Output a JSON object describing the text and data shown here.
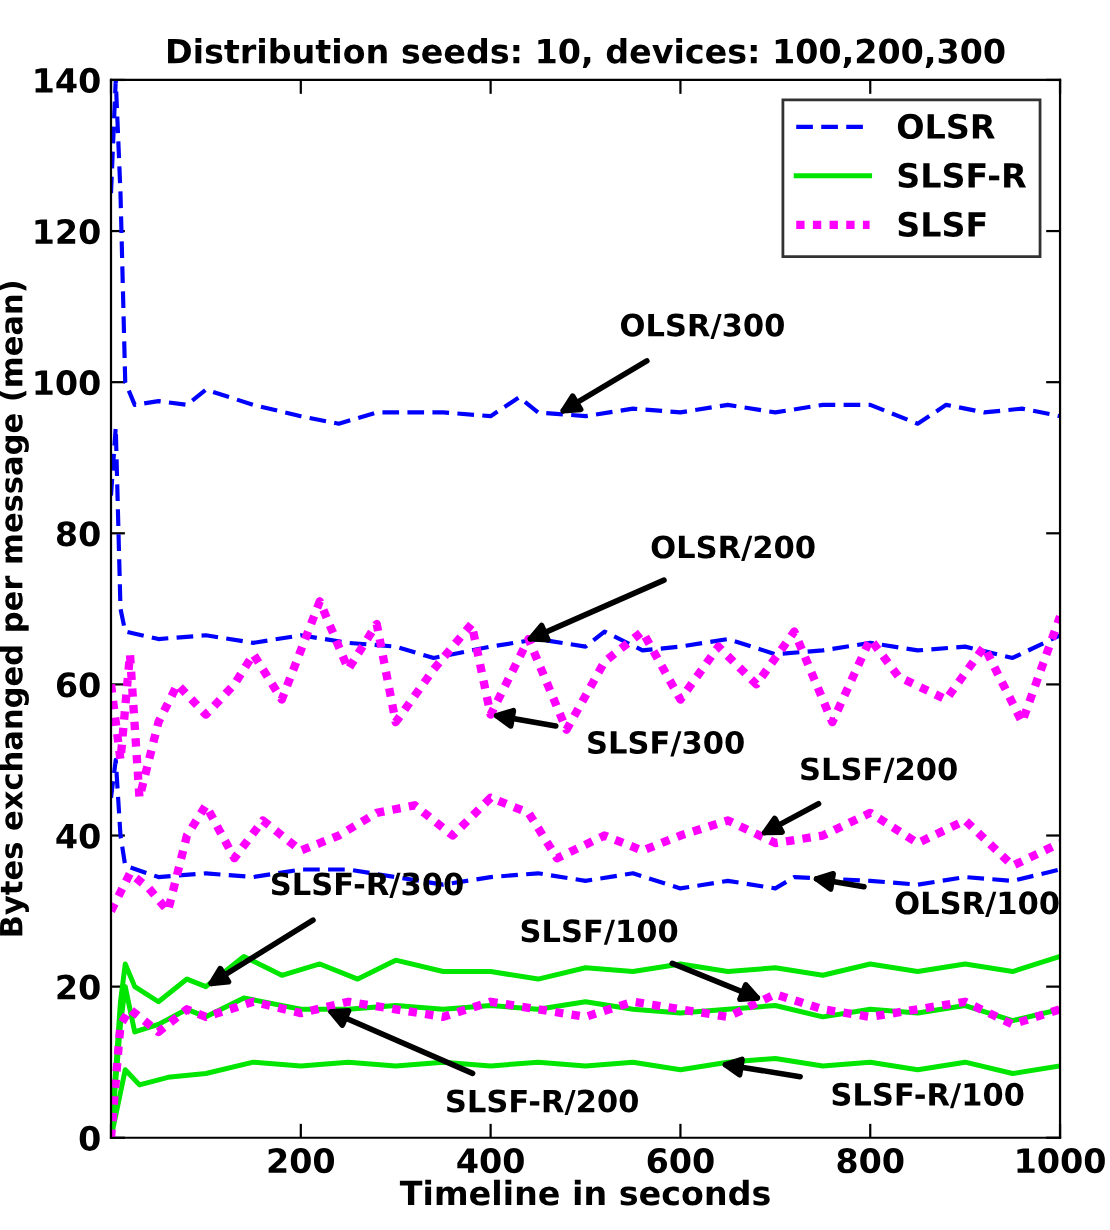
{
  "chart_data": {
    "type": "line",
    "title": "Distribution seeds: 10, devices: 100,200,300",
    "xlabel": "Timeline in seconds",
    "ylabel": "Bytes exchanged per message (mean)",
    "xlim": [
      0,
      1000
    ],
    "xticks": [
      {
        "value": 0,
        "label": null
      },
      200,
      400,
      600,
      800,
      1000
    ],
    "ylim": [
      0,
      140
    ],
    "yticks": [
      0,
      20,
      40,
      60,
      80,
      100,
      120,
      140
    ],
    "grid": false,
    "legend": "top right",
    "series": [
      {
        "name": "OLSR",
        "color": "#0000ff",
        "line_style": "dashed",
        "x": [
          0,
          5,
          10,
          15,
          25,
          50,
          80,
          100,
          150,
          200,
          240,
          280,
          350,
          400,
          430,
          450,
          500,
          550,
          600,
          650,
          700,
          750,
          800,
          850,
          880,
          920,
          960,
          1000
        ],
        "values": [
          125,
          140,
          125,
          100,
          97,
          97.5,
          97,
          99,
          97,
          95.5,
          94.5,
          96,
          96,
          95.5,
          98,
          96,
          95.5,
          96.5,
          96,
          97,
          96,
          97,
          97,
          94.5,
          97,
          96,
          96.5,
          95.5
        ]
      },
      {
        "color": "#0000ff",
        "line_style": "dashed",
        "x": [
          0,
          5,
          10,
          15,
          50,
          100,
          150,
          200,
          250,
          300,
          340,
          400,
          450,
          500,
          520,
          560,
          600,
          650,
          700,
          750,
          800,
          850,
          900,
          950,
          1000
        ],
        "values": [
          85,
          94,
          70,
          67,
          66,
          66.5,
          65.5,
          66.5,
          65.5,
          65,
          63.5,
          65,
          66,
          65,
          67,
          64.5,
          65,
          66,
          64,
          64.5,
          65.5,
          64.5,
          65,
          63.5,
          66.5
        ]
      },
      {
        "color": "#0000ff",
        "line_style": "dashed",
        "x": [
          0,
          5,
          10,
          15,
          50,
          100,
          150,
          200,
          250,
          300,
          350,
          400,
          450,
          500,
          550,
          600,
          650,
          700,
          720,
          800,
          850,
          900,
          950,
          1000
        ],
        "values": [
          45,
          50,
          40,
          36,
          34.5,
          35,
          34.5,
          35.5,
          35.5,
          34.5,
          33.5,
          34.5,
          35,
          34,
          35,
          33,
          34,
          33,
          34.5,
          34,
          33.5,
          34.5,
          34,
          35.5
        ]
      },
      {
        "name": "SLSF-R",
        "color": "#00e600",
        "line_style": "solid",
        "x": [
          0,
          10,
          15,
          25,
          50,
          80,
          100,
          140,
          180,
          220,
          260,
          300,
          350,
          400,
          450,
          500,
          550,
          600,
          650,
          700,
          750,
          800,
          850,
          900,
          950,
          1000
        ],
        "values": [
          0,
          18,
          23,
          20,
          18,
          21,
          20,
          24,
          21.5,
          23,
          21,
          23.5,
          22,
          22,
          21,
          22.5,
          22,
          23,
          22,
          22.5,
          21.5,
          23,
          22,
          23,
          22,
          24
        ]
      },
      {
        "color": "#00e600",
        "line_style": "solid",
        "x": [
          0,
          10,
          15,
          25,
          50,
          80,
          100,
          140,
          200,
          250,
          300,
          350,
          400,
          450,
          500,
          550,
          600,
          650,
          700,
          750,
          800,
          850,
          900,
          950,
          1000
        ],
        "values": [
          0,
          15,
          20,
          14,
          15,
          17,
          16,
          18.5,
          17,
          17,
          17.5,
          17,
          17.5,
          17,
          18,
          17,
          16.5,
          17,
          17.5,
          16,
          17,
          16.5,
          17.5,
          15.5,
          17
        ]
      },
      {
        "color": "#00e600",
        "line_style": "solid",
        "x": [
          0,
          10,
          15,
          30,
          60,
          100,
          150,
          200,
          250,
          300,
          350,
          400,
          450,
          500,
          550,
          600,
          650,
          700,
          750,
          800,
          850,
          900,
          950,
          1000
        ],
        "values": [
          0,
          6,
          9,
          7,
          8,
          8.5,
          10,
          9.5,
          10,
          9.5,
          10,
          9.5,
          10,
          9.5,
          10,
          9,
          10,
          10.5,
          9.5,
          10,
          9,
          10,
          8.5,
          9.5
        ]
      },
      {
        "name": "SLSF",
        "color": "#ff00ff",
        "line_style": "dotted",
        "x": [
          0,
          10,
          20,
          30,
          50,
          70,
          100,
          130,
          150,
          180,
          220,
          250,
          280,
          300,
          340,
          380,
          400,
          440,
          480,
          520,
          560,
          600,
          640,
          680,
          720,
          760,
          800,
          830,
          880,
          920,
          960,
          1000
        ],
        "values": [
          60,
          50,
          64,
          45,
          55,
          60,
          56,
          60,
          64,
          58,
          71,
          62,
          68,
          55,
          62,
          68,
          56,
          66,
          54,
          63,
          67,
          58,
          65,
          60,
          67,
          55,
          66,
          61,
          58,
          65,
          55,
          69
        ]
      },
      {
        "color": "#ff00ff",
        "line_style": "dotted",
        "x": [
          0,
          20,
          40,
          60,
          80,
          100,
          130,
          160,
          200,
          240,
          280,
          320,
          360,
          400,
          440,
          470,
          520,
          560,
          600,
          650,
          700,
          750,
          800,
          850,
          900,
          950,
          1000
        ],
        "values": [
          30,
          35,
          33,
          30,
          40,
          44,
          37,
          42,
          38,
          40,
          43,
          44,
          40,
          45,
          43,
          37,
          40,
          38,
          40,
          42,
          39,
          40,
          43,
          39,
          42,
          36,
          39
        ]
      },
      {
        "color": "#ff00ff",
        "line_style": "dotted",
        "x": [
          0,
          10,
          20,
          50,
          80,
          100,
          150,
          200,
          250,
          300,
          350,
          400,
          450,
          500,
          550,
          600,
          650,
          700,
          750,
          800,
          850,
          900,
          950,
          1000
        ],
        "values": [
          0,
          15,
          17,
          14,
          17,
          16,
          18,
          16.5,
          18,
          17,
          16,
          18,
          17,
          16,
          18,
          17,
          16,
          19,
          17,
          16,
          17,
          18,
          15,
          17
        ]
      }
    ],
    "annotations": [
      {
        "text": "OLSR/300",
        "x": 471,
        "y": 95.8
      },
      {
        "text": "OLSR/200",
        "x": 436,
        "y": 65.7
      },
      {
        "text": "SLSF/300",
        "x": 400,
        "y": 56
      },
      {
        "text": "SLSF/200",
        "x": 683,
        "y": 40
      },
      {
        "text": "OLSR/100",
        "x": 737,
        "y": 34.4
      },
      {
        "text": "SLSF-R/300",
        "x": 100,
        "y": 20
      },
      {
        "text": "SLSF/100",
        "x": 687,
        "y": 18.2
      },
      {
        "text": "SLSF-R/200",
        "x": 226,
        "y": 17
      },
      {
        "text": "SLSF-R/100",
        "x": 641,
        "y": 9.8
      }
    ]
  }
}
